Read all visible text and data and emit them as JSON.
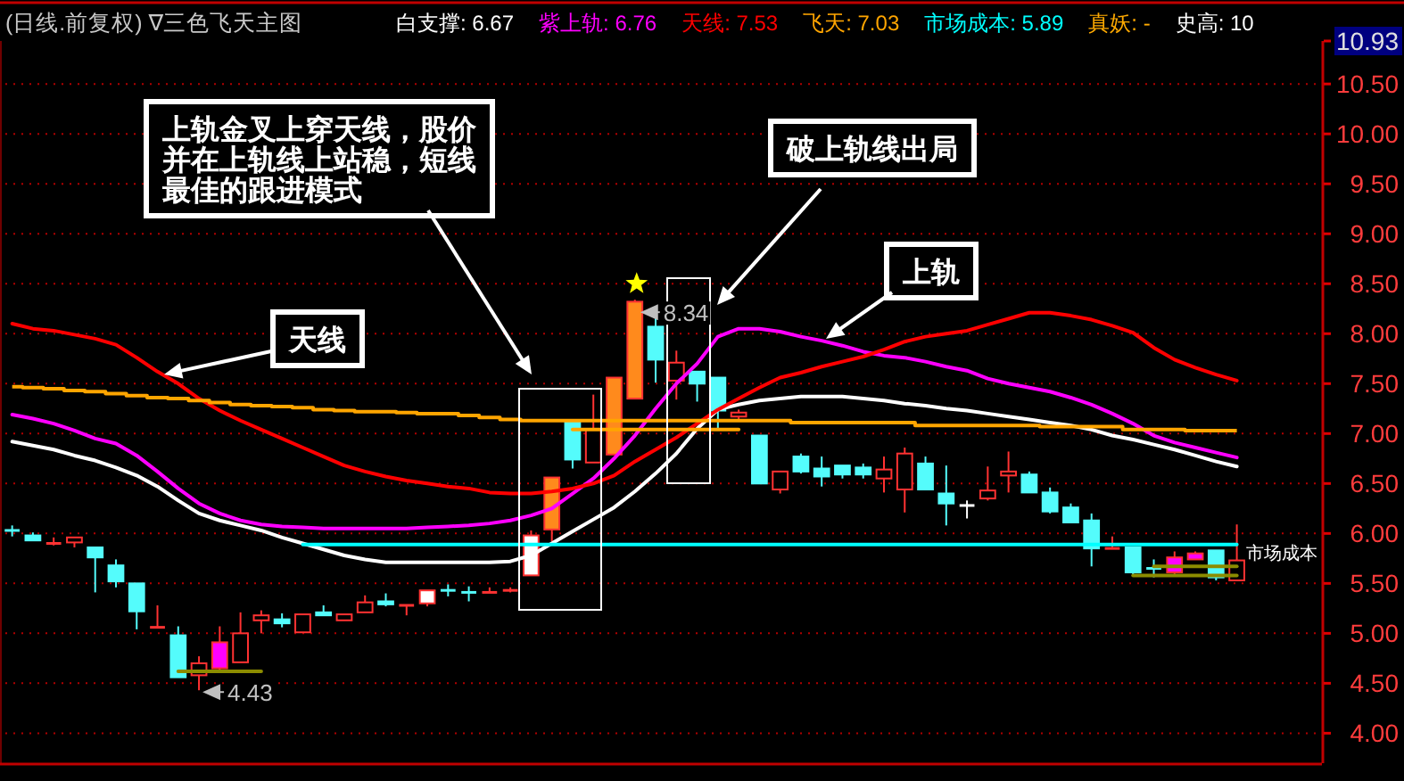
{
  "chart_data": {
    "type": "candlestick",
    "title": "(日线.前复权) ∇三色飞天主图",
    "categories": [
      null,
      null,
      null,
      null,
      null,
      null,
      null,
      null,
      null,
      null,
      null,
      null,
      null,
      null,
      null,
      null,
      null,
      null,
      null,
      null,
      null,
      null,
      null,
      null,
      null,
      null,
      null,
      null,
      null,
      null,
      null,
      null,
      null,
      null,
      null,
      null,
      null,
      null,
      null,
      null,
      null,
      null,
      null,
      null,
      null,
      null,
      null,
      null,
      null,
      null,
      null,
      null,
      null,
      null,
      null,
      null,
      null,
      null,
      null,
      null
    ],
    "ohlc": [
      [
        6.03,
        6.08,
        5.97,
        6.03
      ],
      [
        5.98,
        6.01,
        5.93,
        5.93
      ],
      [
        5.9,
        5.96,
        5.88,
        5.9
      ],
      [
        5.91,
        5.96,
        5.86,
        5.96
      ],
      [
        5.86,
        5.86,
        5.41,
        5.76
      ],
      [
        5.68,
        5.74,
        5.46,
        5.52
      ],
      [
        5.5,
        5.5,
        5.04,
        5.22
      ],
      [
        5.06,
        5.28,
        5.06,
        5.06
      ],
      [
        4.98,
        5.07,
        4.56,
        4.56
      ],
      [
        4.58,
        4.77,
        4.43,
        4.7
      ],
      [
        4.65,
        5.07,
        4.62,
        4.91
      ],
      [
        4.71,
        5.21,
        4.71,
        5.0
      ],
      [
        5.13,
        5.23,
        5.0,
        5.18
      ],
      [
        5.14,
        5.2,
        5.06,
        5.1
      ],
      [
        5.01,
        5.19,
        5.01,
        5.19
      ],
      [
        5.21,
        5.28,
        5.18,
        5.18
      ],
      [
        5.13,
        5.19,
        5.13,
        5.19
      ],
      [
        5.21,
        5.38,
        5.21,
        5.31
      ],
      [
        5.32,
        5.4,
        5.27,
        5.29
      ],
      [
        5.28,
        5.28,
        5.18,
        5.28
      ],
      [
        5.3,
        5.43,
        5.27,
        5.43
      ],
      [
        5.43,
        5.49,
        5.37,
        5.43
      ],
      [
        5.41,
        5.47,
        5.32,
        5.41
      ],
      [
        5.41,
        5.46,
        5.41,
        5.41
      ],
      [
        5.43,
        5.46,
        5.41,
        5.43
      ],
      [
        5.58,
        6.03,
        5.58,
        5.98
      ],
      [
        6.04,
        6.56,
        5.92,
        6.56
      ],
      [
        7.11,
        7.13,
        6.65,
        6.74
      ],
      [
        6.71,
        7.39,
        6.71,
        7.04
      ],
      [
        6.79,
        7.56,
        6.79,
        7.56
      ],
      [
        7.35,
        8.34,
        7.35,
        8.32
      ],
      [
        8.07,
        8.19,
        7.51,
        7.74
      ],
      [
        7.53,
        7.83,
        7.34,
        7.71
      ],
      [
        7.62,
        7.62,
        7.32,
        7.5
      ],
      [
        7.56,
        7.56,
        7.05,
        7.23
      ],
      [
        7.17,
        7.24,
        7.12,
        7.21
      ],
      [
        6.98,
        6.98,
        6.5,
        6.5
      ],
      [
        6.44,
        6.62,
        6.4,
        6.62
      ],
      [
        6.77,
        6.8,
        6.6,
        6.62
      ],
      [
        6.65,
        6.77,
        6.47,
        6.57
      ],
      [
        6.68,
        6.68,
        6.55,
        6.59
      ],
      [
        6.66,
        6.7,
        6.55,
        6.59
      ],
      [
        6.55,
        6.77,
        6.41,
        6.64
      ],
      [
        6.44,
        6.86,
        6.21,
        6.8
      ],
      [
        6.7,
        6.77,
        6.44,
        6.44
      ],
      [
        6.4,
        6.68,
        6.08,
        6.3
      ],
      [
        6.28,
        6.33,
        6.15,
        6.28
      ],
      [
        6.35,
        6.67,
        6.33,
        6.43
      ],
      [
        6.58,
        6.82,
        6.41,
        6.62
      ],
      [
        6.59,
        6.62,
        6.41,
        6.41
      ],
      [
        6.41,
        6.46,
        6.2,
        6.22
      ],
      [
        6.26,
        6.3,
        6.11,
        6.11
      ],
      [
        6.13,
        6.2,
        5.67,
        5.85
      ],
      [
        5.85,
        5.97,
        5.85,
        5.85
      ],
      [
        5.86,
        5.86,
        5.58,
        5.61
      ],
      [
        5.65,
        5.74,
        5.56,
        5.65
      ],
      [
        5.61,
        5.82,
        5.58,
        5.76
      ],
      [
        5.74,
        5.82,
        5.74,
        5.8
      ],
      [
        5.83,
        5.83,
        5.53,
        5.56
      ],
      [
        5.53,
        6.09,
        5.53,
        5.73
      ]
    ],
    "color": "#ff3232",
    "colors": [
      "#54fcfc",
      "#54fcfc",
      "#ff3232",
      "#000000",
      "#54fcfc",
      "#54fcfc",
      "#54fcfc",
      "#ff3232",
      "#54fcfc",
      "#000000",
      "#ff00ff",
      "#000000",
      "#000000",
      "#54fcfc",
      "#000000",
      "#54fcfc",
      "#000000",
      "#000000",
      "#54fcfc",
      "#ff3232",
      "#ffffff",
      "#54fcfc",
      "#54fcfc",
      "#ff3232",
      "#ff3232",
      "#ffffff",
      "#ff8a1c",
      "#54fcfc",
      "#000000",
      "#ff8a1c",
      "#ff8a1c",
      "#54fcfc",
      "#000000",
      "#54fcfc",
      "#54fcfc",
      "#000000",
      "#54fcfc",
      "#000000",
      "#54fcfc",
      "#54fcfc",
      "#54fcfc",
      "#54fcfc",
      "#000000",
      "#000000",
      "#54fcfc",
      "#54fcfc",
      "#ffffff",
      "#000000",
      "#000000",
      "#54fcfc",
      "#54fcfc",
      "#54fcfc",
      "#54fcfc",
      "#ff3232",
      "#54fcfc",
      "#54fcfc",
      "#ff00ff",
      "#ff00ff",
      "#54fcfc",
      "#000000"
    ],
    "series": [
      {
        "type": "line",
        "name": "白支撑: 6.67",
        "color": "#ffffff",
        "values": [
          6.92,
          6.88,
          6.84,
          6.78,
          6.73,
          6.66,
          6.58,
          6.47,
          6.33,
          6.2,
          6.13,
          6.08,
          6.03,
          5.96,
          5.9,
          5.84,
          5.78,
          5.74,
          5.71,
          5.71,
          5.71,
          5.71,
          5.71,
          5.71,
          5.72,
          5.78,
          5.9,
          6.02,
          6.14,
          6.26,
          6.42,
          6.6,
          6.8,
          7.05,
          7.24,
          7.29,
          7.33,
          7.35,
          7.37,
          7.37,
          7.37,
          7.35,
          7.33,
          7.3,
          7.28,
          7.25,
          7.23,
          7.2,
          7.17,
          7.14,
          7.11,
          7.08,
          7.04,
          6.98,
          6.94,
          6.89,
          6.84,
          6.78,
          6.72,
          6.67
        ]
      },
      {
        "type": "line",
        "name": "紫上轨: 6.76",
        "color": "#ff00ff",
        "values": [
          7.19,
          7.15,
          7.1,
          7.03,
          6.95,
          6.9,
          6.78,
          6.62,
          6.45,
          6.3,
          6.2,
          6.13,
          6.09,
          6.07,
          6.06,
          6.05,
          6.05,
          6.05,
          6.05,
          6.05,
          6.06,
          6.07,
          6.08,
          6.1,
          6.13,
          6.18,
          6.25,
          6.4,
          6.55,
          6.75,
          6.98,
          7.25,
          7.5,
          7.7,
          7.97,
          8.05,
          8.05,
          8.02,
          7.97,
          7.93,
          7.88,
          7.82,
          7.78,
          7.76,
          7.72,
          7.67,
          7.63,
          7.55,
          7.5,
          7.46,
          7.42,
          7.36,
          7.29,
          7.2,
          7.1,
          6.98,
          6.91,
          6.86,
          6.81,
          6.76
        ]
      },
      {
        "type": "line",
        "name": "天线: 7.53",
        "color": "#ff0000",
        "values": [
          8.1,
          8.05,
          8.03,
          7.99,
          7.95,
          7.89,
          7.76,
          7.62,
          7.5,
          7.35,
          7.23,
          7.13,
          7.04,
          6.95,
          6.86,
          6.77,
          6.68,
          6.62,
          6.57,
          6.53,
          6.5,
          6.47,
          6.45,
          6.41,
          6.4,
          6.4,
          6.42,
          6.45,
          6.5,
          6.58,
          6.72,
          6.84,
          6.96,
          7.1,
          7.24,
          7.35,
          7.46,
          7.56,
          7.61,
          7.67,
          7.72,
          7.77,
          7.84,
          7.92,
          7.97,
          8.0,
          8.03,
          8.09,
          8.15,
          8.21,
          8.21,
          8.18,
          8.14,
          8.08,
          8.01,
          7.86,
          7.74,
          7.66,
          7.59,
          7.53
        ]
      },
      {
        "type": "step",
        "name": "飞天: 7.03",
        "color": "#ffa500",
        "values": [
          7.47,
          7.46,
          7.45,
          7.43,
          7.42,
          7.4,
          7.38,
          7.36,
          7.35,
          7.33,
          7.31,
          7.29,
          7.28,
          7.27,
          7.26,
          7.24,
          7.23,
          7.22,
          7.22,
          7.21,
          7.2,
          7.2,
          7.18,
          7.16,
          7.14,
          7.13,
          7.13,
          7.13,
          7.13,
          7.13,
          7.13,
          7.13,
          7.13,
          7.13,
          7.13,
          7.13,
          7.13,
          7.13,
          7.11,
          7.11,
          7.11,
          7.11,
          7.11,
          7.11,
          7.08,
          7.08,
          7.08,
          7.08,
          7.08,
          7.08,
          7.07,
          7.07,
          7.07,
          7.07,
          7.04,
          7.04,
          7.04,
          7.03,
          7.03,
          7.03
        ]
      },
      {
        "type": "line",
        "name": "市场成本: 5.89",
        "color": "#00ffff",
        "values": [
          null,
          null,
          null,
          null,
          null,
          null,
          null,
          null,
          null,
          null,
          null,
          null,
          null,
          null,
          5.89,
          5.89,
          5.89,
          5.89,
          5.89,
          5.89,
          5.89,
          5.89,
          5.89,
          5.89,
          5.89,
          5.89,
          5.89,
          5.89,
          5.89,
          5.89,
          5.89,
          5.89,
          5.89,
          5.89,
          5.89,
          5.89,
          5.89,
          5.89,
          5.89,
          5.89,
          5.89,
          5.89,
          5.89,
          5.89,
          5.89,
          5.89,
          5.89,
          5.89,
          5.89,
          5.89,
          5.89,
          5.89,
          5.89,
          5.89,
          5.89,
          5.89,
          5.89,
          5.89,
          5.89,
          5.89
        ]
      },
      {
        "type": "line",
        "color": "#ffa500",
        "values": [
          null,
          null,
          null,
          null,
          null,
          null,
          null,
          null,
          null,
          null,
          null,
          null,
          null,
          null,
          null,
          null,
          null,
          null,
          null,
          null,
          null,
          null,
          null,
          null,
          null,
          null,
          null,
          7.04,
          7.04,
          7.04,
          7.04,
          7.04,
          7.04,
          7.04,
          7.04,
          7.04,
          null,
          null,
          null,
          null,
          null,
          null,
          null,
          null,
          null,
          null,
          null,
          null,
          null,
          null,
          null,
          null,
          null,
          null,
          null,
          null,
          null,
          null,
          null,
          null
        ]
      },
      {
        "type": "line",
        "color": "#8c8c00",
        "values": [
          null,
          null,
          null,
          null,
          null,
          null,
          null,
          null,
          4.62,
          4.62,
          4.62,
          4.62,
          4.62,
          null,
          null,
          null,
          null,
          null,
          null,
          null,
          null,
          null,
          null,
          null,
          null,
          null,
          null,
          null,
          null,
          null,
          null,
          null,
          null,
          null,
          null,
          null,
          null,
          null,
          null,
          null,
          null,
          null,
          null,
          null,
          null,
          null,
          null,
          null,
          null,
          null,
          null,
          null,
          null,
          null,
          null,
          null,
          null,
          null,
          null,
          null
        ]
      },
      {
        "type": "line",
        "color": "#8c8c00",
        "values": [
          null,
          null,
          null,
          null,
          null,
          null,
          null,
          null,
          null,
          null,
          null,
          null,
          null,
          null,
          null,
          null,
          null,
          null,
          null,
          null,
          null,
          null,
          null,
          null,
          null,
          null,
          null,
          null,
          null,
          null,
          null,
          null,
          null,
          null,
          null,
          null,
          null,
          null,
          null,
          null,
          null,
          null,
          null,
          null,
          null,
          null,
          null,
          null,
          null,
          null,
          null,
          null,
          null,
          null,
          5.58,
          5.58,
          5.58,
          5.58,
          5.58,
          5.58
        ]
      },
      {
        "type": "line",
        "color": "#8c8c00",
        "values": [
          null,
          null,
          null,
          null,
          null,
          null,
          null,
          null,
          null,
          null,
          null,
          null,
          null,
          null,
          null,
          null,
          null,
          null,
          null,
          null,
          null,
          null,
          null,
          null,
          null,
          null,
          null,
          null,
          null,
          null,
          null,
          null,
          null,
          null,
          null,
          null,
          null,
          null,
          null,
          null,
          null,
          null,
          null,
          null,
          null,
          null,
          null,
          null,
          null,
          null,
          null,
          null,
          null,
          null,
          null,
          5.67,
          5.67,
          5.67,
          5.67,
          5.67
        ]
      }
    ],
    "ylim": [
      3.7,
      10.93
    ],
    "yticks": [
      {
        "value": 4,
        "label": "4.00"
      },
      {
        "value": 4.5,
        "label": "4.50"
      },
      {
        "value": 5,
        "label": "5.00"
      },
      {
        "value": 5.5,
        "label": "5.50"
      },
      {
        "value": 6,
        "label": "6.00"
      },
      {
        "value": 6.5,
        "label": "6.50"
      },
      {
        "value": 7,
        "label": "7.00"
      },
      {
        "value": 7.5,
        "label": "7.50"
      },
      {
        "value": 8,
        "label": "8.00"
      },
      {
        "value": 8.5,
        "label": "8.50"
      },
      {
        "value": 9,
        "label": "9.00"
      },
      {
        "value": 9.5,
        "label": "9.50"
      },
      {
        "value": 10,
        "label": "10.00"
      },
      {
        "value": 10.5,
        "label": "10.50"
      },
      {
        "value": 10.93,
        "label": "10.93"
      }
    ],
    "grid": "y",
    "legend": "top",
    "annotations": [
      "上轨金叉上穿天线，股价并在上轨线上站稳，短线最佳的跟进模式",
      "破上轨线出局",
      "上轨",
      "天线",
      "8.34",
      "4.43",
      "市场成本",
      "真妖: -",
      "史高: 10"
    ]
  }
}
